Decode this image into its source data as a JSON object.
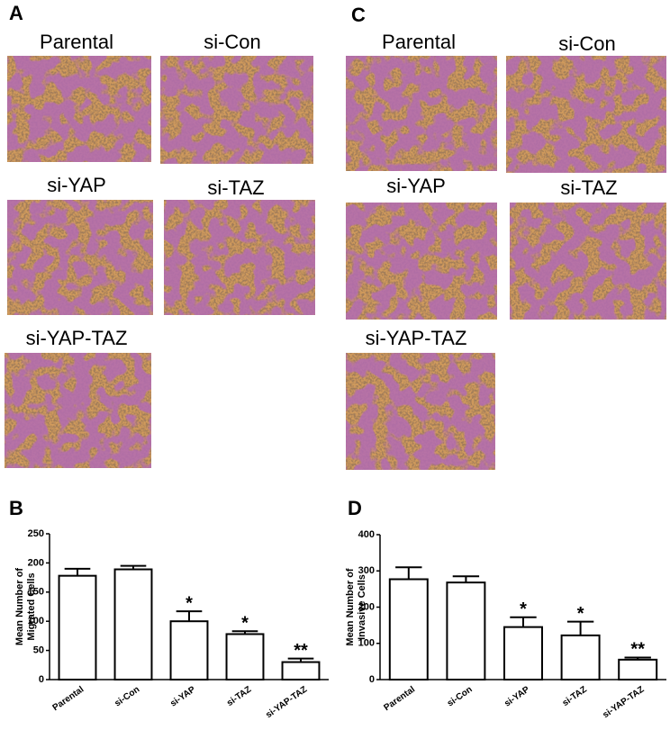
{
  "figure": {
    "panels": [
      {
        "label": "A",
        "images": [
          "Parental",
          "si-Con",
          "si-YAP",
          "si-TAZ",
          "si-YAP-TAZ"
        ]
      },
      {
        "label": "C",
        "images": [
          "Parental",
          "si-Con",
          "si-YAP",
          "si-TAZ",
          "si-YAP-TAZ"
        ]
      }
    ]
  },
  "chart_data": [
    {
      "type": "bar",
      "panel_label": "B",
      "ylabel": [
        "Mean Number of",
        "Migrated Cells"
      ],
      "categories": [
        "Parental",
        "si-Con",
        "si-YAP",
        "si-TAZ",
        "si-YAP-TAZ"
      ],
      "values": [
        178,
        189,
        100,
        78,
        30
      ],
      "errors": [
        12,
        6,
        17,
        5,
        6
      ],
      "annotations": [
        null,
        null,
        "*",
        "*",
        "**"
      ],
      "ylim": [
        0,
        250
      ],
      "yticks": [
        0,
        50,
        100,
        150,
        200,
        250
      ],
      "color": "#ffffff"
    },
    {
      "type": "bar",
      "panel_label": "D",
      "ylabel": [
        "Mean Number of",
        "Invasive Cells"
      ],
      "categories": [
        "Parental",
        "si-Con",
        "si-YAP",
        "si-TAZ",
        "si-YAP-TAZ"
      ],
      "values": [
        277,
        268,
        145,
        122,
        55
      ],
      "errors": [
        33,
        17,
        27,
        38,
        6
      ],
      "annotations": [
        null,
        null,
        "*",
        "*",
        "**"
      ],
      "ylim": [
        0,
        400
      ],
      "yticks": [
        0,
        100,
        200,
        300,
        400
      ],
      "color": "#ffffff"
    }
  ]
}
